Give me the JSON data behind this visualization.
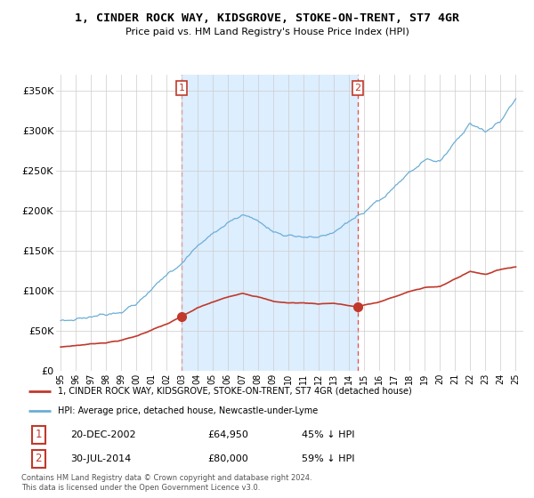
{
  "title": "1, CINDER ROCK WAY, KIDSGROVE, STOKE-ON-TRENT, ST7 4GR",
  "subtitle": "Price paid vs. HM Land Registry's House Price Index (HPI)",
  "legend_line1": "1, CINDER ROCK WAY, KIDSGROVE, STOKE-ON-TRENT, ST7 4GR (detached house)",
  "legend_line2": "HPI: Average price, detached house, Newcastle-under-Lyme",
  "footnote": "Contains HM Land Registry data © Crown copyright and database right 2024.\nThis data is licensed under the Open Government Licence v3.0.",
  "transaction1_date": "20-DEC-2002",
  "transaction1_price": "£64,950",
  "transaction1_hpi": "45% ↓ HPI",
  "transaction1_x": 2002.97,
  "transaction1_y": 64950,
  "transaction2_date": "30-JUL-2014",
  "transaction2_price": "£80,000",
  "transaction2_hpi": "59% ↓ HPI",
  "transaction2_x": 2014.58,
  "transaction2_y": 80000,
  "hpi_color": "#6baed6",
  "price_color": "#c0392b",
  "vline_color": "#e74c3c",
  "shade_color": "#ddeeff",
  "background_color": "#ffffff",
  "grid_color": "#cccccc",
  "ylim_min": 0,
  "ylim_max": 370000,
  "yticks": [
    0,
    50000,
    100000,
    150000,
    200000,
    250000,
    300000,
    350000
  ],
  "xmin": 1994.7,
  "xmax": 2025.5,
  "hpi_key_years": [
    1995,
    1996,
    1997,
    1998,
    1999,
    2000,
    2001,
    2002,
    2003,
    2004,
    2005,
    2006,
    2007,
    2008,
    2009,
    2010,
    2011,
    2012,
    2013,
    2014,
    2015,
    2016,
    2017,
    2018,
    2019,
    2020,
    2021,
    2022,
    2023,
    2024,
    2025
  ],
  "hpi_key_vals": [
    63000,
    66000,
    70000,
    75000,
    82000,
    92000,
    108000,
    125000,
    143000,
    163000,
    178000,
    192000,
    203000,
    195000,
    181000,
    177000,
    178000,
    176000,
    178000,
    192000,
    200000,
    210000,
    225000,
    242000,
    255000,
    255000,
    280000,
    305000,
    295000,
    310000,
    340000
  ],
  "price_key_years_seg1": [
    1995,
    1996,
    1997,
    1998,
    1999,
    2000,
    2001,
    2002,
    2003,
    2004,
    2005,
    2006,
    2007,
    2008,
    2009,
    2010,
    2011,
    2012,
    2013,
    2014.58
  ],
  "price_key_vals_seg1": [
    30000,
    32000,
    34000,
    36000,
    39000,
    44000,
    52000,
    59000,
    68000,
    78000,
    85000,
    91000,
    97000,
    93000,
    87000,
    85000,
    85000,
    84000,
    85000,
    80000
  ],
  "price_key_years_seg2": [
    2014.58,
    2015,
    2016,
    2017,
    2018,
    2019,
    2020,
    2021,
    2022,
    2023,
    2024,
    2025
  ],
  "price_key_vals_seg2": [
    80000,
    83000,
    87000,
    93000,
    100000,
    105000,
    106000,
    115000,
    125000,
    121000,
    127000,
    130000
  ]
}
